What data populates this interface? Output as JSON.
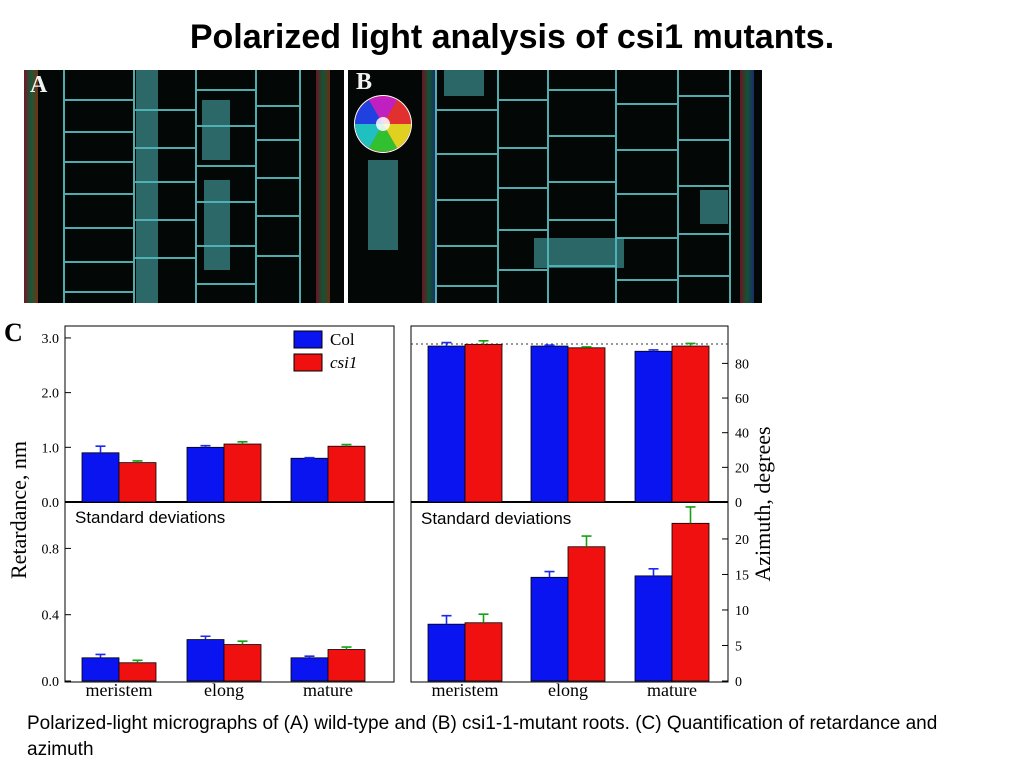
{
  "slide": {
    "title": "Polarized light analysis of csi1 mutants.",
    "caption": "Polarized-light micrographs of (A) wild-type and (B) csi1-1-mutant roots. (C) Quantification of retardance and azimuth"
  },
  "panels": {
    "a": "A",
    "b": "B",
    "c": "C"
  },
  "colors": {
    "col": "#0a14f0",
    "csi1": "#f01010",
    "col_err": "#1a2af0",
    "csi1_err": "#16a016"
  },
  "chart_data": [
    {
      "type": "bar",
      "categories": [
        "meristem",
        "elong",
        "mature"
      ],
      "series": [
        {
          "name": "Col",
          "values": [
            0.9,
            1.0,
            0.8
          ],
          "errors": [
            0.12,
            0.03,
            0.01
          ]
        },
        {
          "name": "csi1",
          "values": [
            0.72,
            1.06,
            1.02
          ],
          "errors": [
            0.03,
            0.04,
            0.03
          ]
        }
      ],
      "ylim": [
        0,
        3.2
      ],
      "yticks": [
        "0.0",
        "1.0",
        "2.0",
        "3.0"
      ],
      "legend": {
        "position": "top-right",
        "entries": [
          "Col",
          "csi1"
        ]
      },
      "grid": false
    },
    {
      "type": "bar",
      "title": "Standard deviations",
      "categories": [
        "meristem",
        "elong",
        "mature"
      ],
      "series": [
        {
          "name": "Col",
          "values": [
            0.14,
            0.25,
            0.14
          ],
          "errors": [
            0.02,
            0.02,
            0.01
          ]
        },
        {
          "name": "csi1",
          "values": [
            0.11,
            0.22,
            0.19
          ],
          "errors": [
            0.015,
            0.02,
            0.015
          ]
        }
      ],
      "ylim": [
        0,
        1.08
      ],
      "yticks": [
        "0.0",
        "0.4",
        "0.8"
      ],
      "ylabel": "Retardance, nm",
      "grid": false
    },
    {
      "type": "bar",
      "categories": [
        "meristem",
        "elong",
        "mature"
      ],
      "series": [
        {
          "name": "Col",
          "values": [
            90,
            90,
            87
          ],
          "errors": [
            2,
            0.5,
            0.8
          ]
        },
        {
          "name": "csi1",
          "values": [
            91,
            89,
            90
          ],
          "errors": [
            2,
            0.5,
            1.5
          ]
        }
      ],
      "ylim": [
        0,
        101
      ],
      "yticks": [
        "0",
        "20",
        "40",
        "60",
        "80"
      ],
      "reference_line": 91,
      "grid": false
    },
    {
      "type": "bar",
      "title": "Standard deviations",
      "categories": [
        "meristem",
        "elong",
        "mature"
      ],
      "series": [
        {
          "name": "Col",
          "values": [
            8,
            14.6,
            14.8
          ],
          "errors": [
            1.2,
            0.8,
            1.0
          ]
        },
        {
          "name": "csi1",
          "values": [
            8.2,
            18.9,
            22.2
          ],
          "errors": [
            1.2,
            1.5,
            2.3
          ]
        }
      ],
      "ylim": [
        0,
        25.2
      ],
      "yticks": [
        "0",
        "5",
        "10",
        "15",
        "20"
      ],
      "ylabel": "Azimuth, degrees",
      "grid": false
    }
  ]
}
